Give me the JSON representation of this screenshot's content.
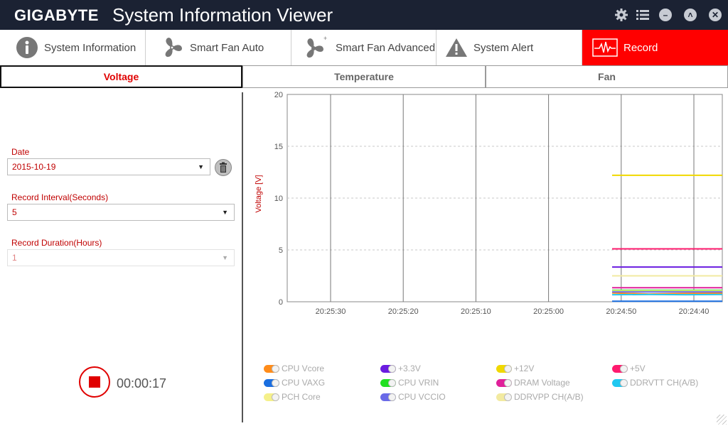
{
  "window": {
    "brand": "GIGABYTE",
    "title": "System Information Viewer"
  },
  "main_tabs": [
    {
      "label": "System Information",
      "icon": "info-icon"
    },
    {
      "label": "Smart Fan Auto",
      "icon": "fan-icon"
    },
    {
      "label": "Smart Fan Advanced",
      "icon": "fan-plus-icon"
    },
    {
      "label": "System Alert",
      "icon": "warning-icon"
    },
    {
      "label": "Record",
      "icon": "pulse-icon",
      "active": true
    }
  ],
  "sub_tabs": [
    {
      "label": "Voltage",
      "active": true
    },
    {
      "label": "Temperature"
    },
    {
      "label": "Fan"
    }
  ],
  "form": {
    "date_label": "Date",
    "date_value": "2015-10-19",
    "interval_label": "Record Interval(Seconds)",
    "interval_value": "5",
    "duration_label": "Record Duration(Hours)",
    "duration_value": "1"
  },
  "record": {
    "elapsed": "00:00:17"
  },
  "chart_data": {
    "type": "line",
    "ylabel": "Voltage [V]",
    "ylim": [
      0,
      20
    ],
    "yticks": [
      "0",
      "5",
      "10",
      "15",
      "20"
    ],
    "xticks": [
      "20:25:30",
      "20:25:20",
      "20:25:10",
      "20:25:00",
      "20:24:50",
      "20:24:40"
    ],
    "x": [
      "20:24:52",
      "20:24:47",
      "20:24:42",
      "20:24:37"
    ],
    "series": [
      {
        "name": "CPU Vcore",
        "color": "#ff8c1a",
        "values": [
          0.85,
          0.75,
          0.8,
          0.82
        ]
      },
      {
        "name": "+3.3V",
        "color": "#6a1be0",
        "values": [
          3.35,
          3.35,
          3.35,
          3.35
        ]
      },
      {
        "name": "+12V",
        "color": "#f0d800",
        "values": [
          12.2,
          12.2,
          12.2,
          12.2
        ]
      },
      {
        "name": "+5V",
        "color": "#ff1a6e",
        "values": [
          5.1,
          5.1,
          5.1,
          5.1
        ]
      },
      {
        "name": "CPU VAXG",
        "color": "#1a6ee0",
        "values": [
          0.05,
          0.05,
          0.05,
          0.05
        ]
      },
      {
        "name": "CPU VRIN",
        "color": "#22e022",
        "values": [
          1.1,
          1.1,
          1.1,
          1.1
        ]
      },
      {
        "name": "DRAM Voltage",
        "color": "#e0209a",
        "values": [
          1.35,
          1.35,
          1.35,
          1.35
        ]
      },
      {
        "name": "DDRVTT CH(A/B)",
        "color": "#20c8f0",
        "values": [
          0.68,
          0.7,
          0.68,
          0.7
        ]
      },
      {
        "name": "PCH Core",
        "color": "#f5f08a",
        "values": [
          1.05,
          1.05,
          1.05,
          1.05
        ]
      },
      {
        "name": "CPU VCCIO",
        "color": "#6a6ae8",
        "values": [
          0.95,
          0.95,
          0.95,
          0.95
        ]
      },
      {
        "name": "DDRVPP CH(A/B)",
        "color": "#f2eaa0",
        "values": [
          2.5,
          2.5,
          2.5,
          2.5
        ]
      }
    ]
  }
}
